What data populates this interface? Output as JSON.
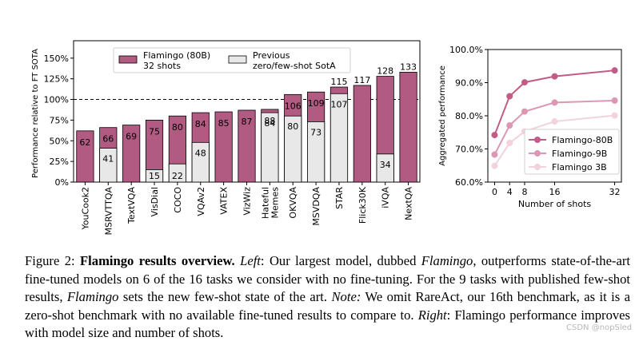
{
  "chart_data": [
    {
      "type": "bar",
      "ylabel": "Performance relative to FT SOTA",
      "ylim": [
        0,
        160
      ],
      "yticks": [
        "0%",
        "25%",
        "50%",
        "75%",
        "100%",
        "125%",
        "150%"
      ],
      "reference_line": 100,
      "colors": {
        "flamingo": "#b15a82",
        "previous": "#e8e8e8"
      },
      "legend": {
        "flamingo_line1": "Flamingo (80B)",
        "flamingo_line2": "32 shots",
        "previous_line1": "Previous",
        "previous_line2": "zero/few-shot SotA"
      },
      "categories": [
        "YouCook2",
        "MSRVTTQA",
        "TextVQA",
        "VisDial",
        "COCO",
        "VQAv2",
        "VATEX",
        "VizWiz",
        "Hateful\nMemes",
        "OKVQA",
        "MSVDQA",
        "STAR",
        "Flick30K",
        "iVQA",
        "NextQA"
      ],
      "series": [
        {
          "name": "Flamingo (80B) 32 shots",
          "values": [
            62,
            66,
            69,
            75,
            80,
            84,
            85,
            87,
            88,
            106,
            109,
            115,
            117,
            128,
            133
          ]
        },
        {
          "name": "Previous zero/few-shot SotA",
          "values": [
            null,
            41,
            null,
            15,
            22,
            48,
            null,
            null,
            84,
            80,
            73,
            107,
            null,
            34,
            null
          ]
        }
      ]
    },
    {
      "type": "line",
      "xlabel": "Number of shots",
      "ylabel": "Aggregated performance",
      "x": [
        0,
        4,
        8,
        16,
        32
      ],
      "ylim": [
        60,
        100
      ],
      "yticks": [
        "60.0%",
        "70.0%",
        "80.0%",
        "90.0%",
        "100.0%"
      ],
      "series": [
        {
          "name": "Flamingo-80B",
          "color": "#c05c86",
          "values": [
            74.2,
            85.9,
            90.1,
            91.9,
            93.7
          ]
        },
        {
          "name": "Flamingo-9B",
          "color": "#dc97b3",
          "values": [
            68.3,
            77.1,
            81.3,
            84.0,
            84.6
          ]
        },
        {
          "name": "Flamingo 3B",
          "color": "#f2d2dc",
          "values": [
            64.9,
            71.8,
            75.3,
            78.3,
            80.1
          ]
        }
      ]
    }
  ],
  "caption": {
    "label": "Figure 2:",
    "title": "Flamingo results overview.",
    "left_label": "Left",
    "t1": ": Our largest model, dubbed ",
    "flamingo": "Flamingo",
    "t2": ", outperforms state-of-the-art fine-tuned models on 6 of the 16 tasks we consider with no fine-tuning. For the 9 tasks with published few-shot results, ",
    "t3": " sets the new few-shot state of the art. ",
    "note_label": "Note:",
    "t4": " We omit RareAct, our 16th benchmark, as it is a zero-shot benchmark with no available fine-tuned results to compare to. ",
    "right_label": "Right",
    "t5": ": Flamingo performance improves with model size and number of shots."
  },
  "watermark": "CSDN @nopSled"
}
